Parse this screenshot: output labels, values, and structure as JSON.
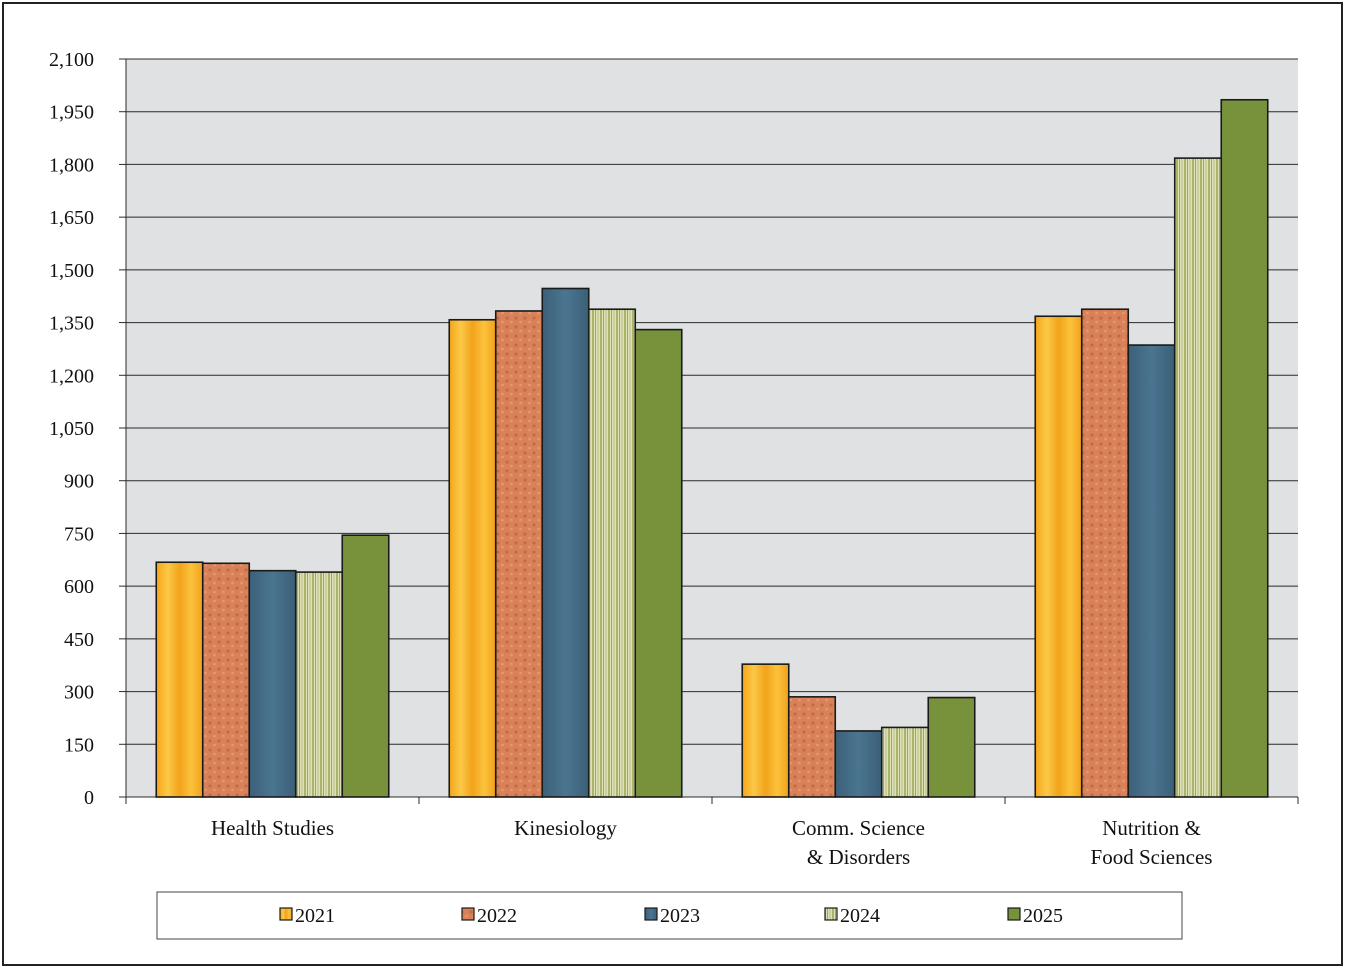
{
  "chart_data": {
    "type": "bar",
    "categories": [
      [
        "Health Studies"
      ],
      [
        "Kinesiology"
      ],
      [
        "Comm. Science",
        "& Disorders"
      ],
      [
        "Nutrition &",
        "Food Sciences"
      ]
    ],
    "series": [
      {
        "name": "2021",
        "color": "#f5b21d",
        "pattern": "wood",
        "values": [
          668,
          1358,
          378,
          1368
        ]
      },
      {
        "name": "2022",
        "color": "#d98258",
        "pattern": "dots",
        "values": [
          665,
          1383,
          285,
          1388
        ]
      },
      {
        "name": "2023",
        "color": "#41697f",
        "pattern": "solid-blue",
        "values": [
          644,
          1447,
          188,
          1286
        ]
      },
      {
        "name": "2024",
        "color": "#c8cc9a",
        "pattern": "stripes",
        "values": [
          640,
          1388,
          198,
          1818
        ]
      },
      {
        "name": "2025",
        "color": "#77923b",
        "pattern": "solid",
        "values": [
          745,
          1330,
          283,
          1984
        ]
      }
    ],
    "ylim": [
      0,
      2100
    ],
    "yticks": [
      "0",
      "150",
      "300",
      "450",
      "600",
      "750",
      "900",
      "1,050",
      "1,200",
      "1,350",
      "1,500",
      "1,650",
      "1,800",
      "1,950",
      "2,100"
    ],
    "ytick_values": [
      0,
      150,
      300,
      450,
      600,
      750,
      900,
      1050,
      1200,
      1350,
      1500,
      1650,
      1800,
      1950,
      2100
    ],
    "grid": true,
    "plot_background": "#e0e1e3",
    "legend_position": "bottom",
    "title": "",
    "xlabel": "",
    "ylabel": ""
  }
}
